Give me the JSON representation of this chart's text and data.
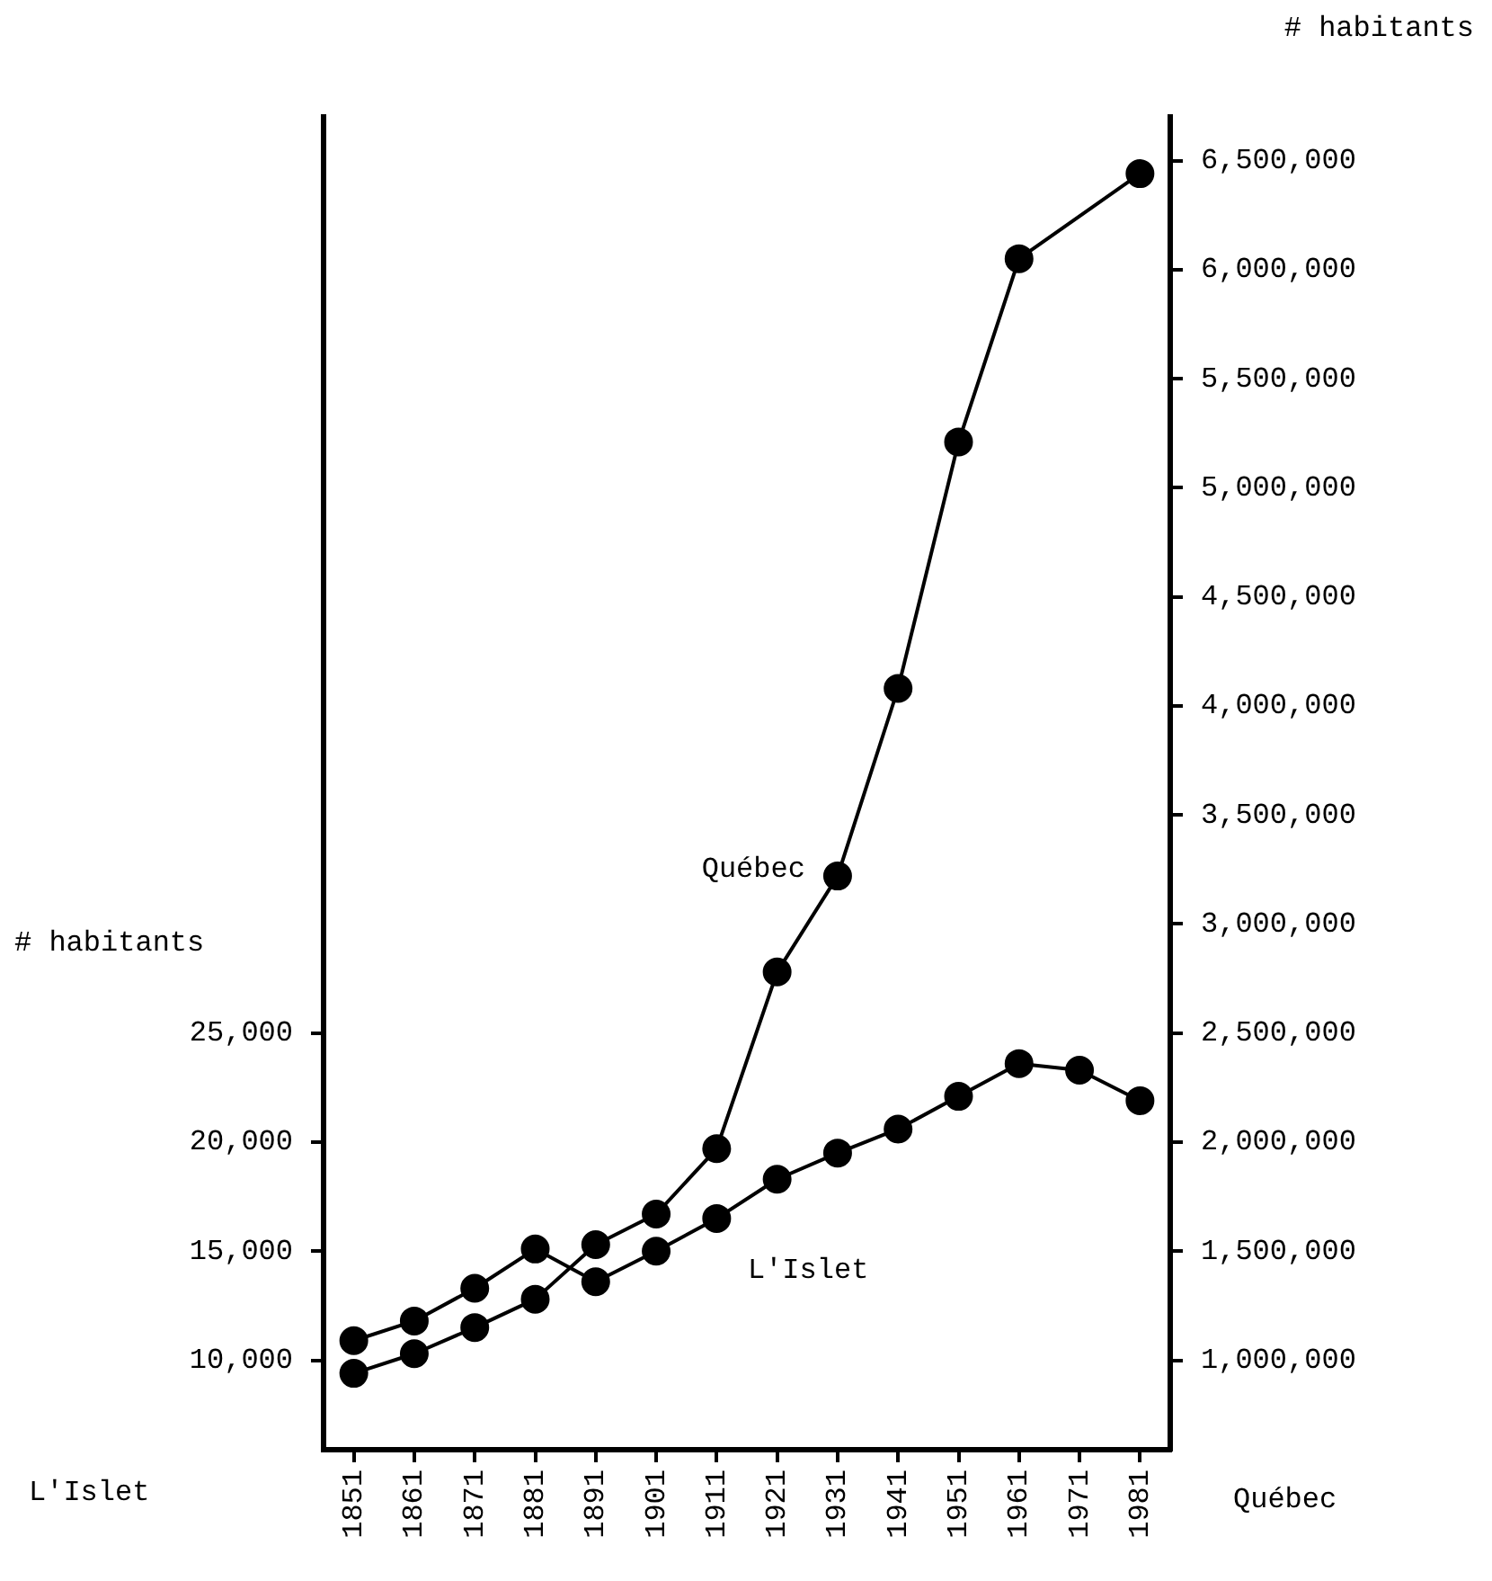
{
  "chart_data": {
    "type": "line",
    "categories": [
      "1851",
      "1861",
      "1871",
      "1881",
      "1891",
      "1901",
      "1911",
      "1921",
      "1931",
      "1941",
      "1951",
      "1961",
      "1971",
      "1981"
    ],
    "ylabel": "# habitants",
    "y2label": "# habitants",
    "annotations": [
      "L'Islet",
      "Québec"
    ],
    "series": [
      {
        "name": "Québec",
        "color": "#000000",
        "axis": "y2",
        "values": [
          940000,
          1030000,
          1150000,
          1280000,
          1530000,
          1670000,
          1970000,
          2780000,
          3220000,
          4080000,
          5210000,
          6050000,
          null,
          6440000
        ]
      },
      {
        "name": "L'Islet",
        "color": "#000000",
        "values": [
          10900,
          11800,
          13300,
          15100,
          13600,
          15000,
          16500,
          18300,
          19500,
          20600,
          22100,
          23600,
          23300,
          21900
        ]
      }
    ],
    "ylim": [
      5900,
      67000
    ],
    "yticks": [
      {
        "value": 10000,
        "label": "10,000"
      },
      {
        "value": 15000,
        "label": "15,000"
      },
      {
        "value": 20000,
        "label": "20,000"
      },
      {
        "value": 25000,
        "label": "25,000"
      }
    ],
    "y2lim": [
      590000,
      6700000
    ],
    "y2ticks": [
      {
        "value": 1000000,
        "label": "1,000,000"
      },
      {
        "value": 1500000,
        "label": "1,500,000"
      },
      {
        "value": 2000000,
        "label": "2,000,000"
      },
      {
        "value": 2500000,
        "label": "2,500,000"
      },
      {
        "value": 3000000,
        "label": "3,000,000"
      },
      {
        "value": 3500000,
        "label": "3,500,000"
      },
      {
        "value": 4000000,
        "label": "4,000,000"
      },
      {
        "value": 4500000,
        "label": "4,500,000"
      },
      {
        "value": 5000000,
        "label": "5,000,000"
      },
      {
        "value": 5500000,
        "label": "5,500,000"
      },
      {
        "value": 6000000,
        "label": "6,000,000"
      },
      {
        "value": 6500000,
        "label": "6,500,000"
      }
    ],
    "grid": false,
    "legend": false,
    "marker": "circle",
    "line_style": "solid"
  }
}
